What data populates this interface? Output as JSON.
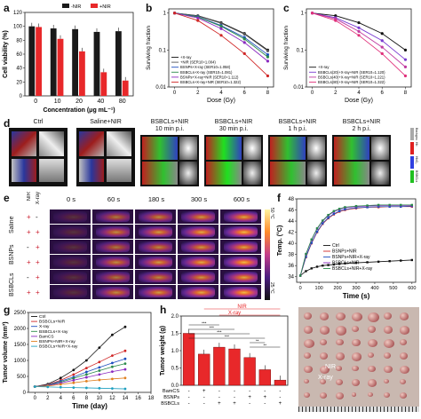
{
  "panel_labels": {
    "a": "a",
    "b": "b",
    "c": "c",
    "d": "d",
    "e": "e",
    "f": "f",
    "g": "g",
    "h": "h",
    "i": "i"
  },
  "colors": {
    "nir": "#e8282a",
    "no_nir": "#1a1a1a",
    "accent": "#cc2233"
  },
  "panel_a": {
    "legend": [
      "-NIR",
      "+NIR"
    ],
    "ylabel": "Cell viability (%)",
    "xlabel": "Concentration (μg mL⁻¹)",
    "categories": [
      "0",
      "10",
      "20",
      "40",
      "80"
    ],
    "yticks": [
      "0",
      "20",
      "40",
      "60",
      "80",
      "100",
      "120"
    ]
  },
  "panel_b": {
    "ylabel": "Surviving fraction",
    "xlabel": "Dose (Gy)",
    "xticks": [
      "0",
      "2",
      "4",
      "6",
      "8"
    ],
    "yticks": [
      "1",
      "0.1",
      "0.01"
    ],
    "legend": [
      "+X-ray",
      "+NIR (SER10=1.004)",
      "BSNPs+X-ray (SER10=1.058)",
      "BSBCLs+X-ray (SER10=1.081)",
      "BSNPs+X-ray+NIR (SER10=1.112)",
      "BSBCLs+X-ray+NIR (SER10=1.322)"
    ]
  },
  "panel_c": {
    "ylabel": "Surviving fraction",
    "xlabel": "Dose (Gy)",
    "xticks": [
      "0",
      "2",
      "4",
      "6",
      "8"
    ],
    "yticks": [
      "1",
      "0.1",
      "0.01"
    ],
    "legend": [
      "+X-ray",
      "BSBCLs(20)+X-ray+NIR (SER10=1.120)",
      "BSBCLs(40)+X-ray+NIR (SER10=1.221)",
      "BSBCLs(80)+X-ray+NIR (SER10=1.322)"
    ]
  },
  "panel_d": {
    "titles": [
      "Ctrl",
      "Saline+NIR",
      "BSBCLs+NIR\n10 min p.i.",
      "BSBCLs+NIR\n30 min p.i.",
      "BSBCLs+NIR\n1 h p.i.",
      "BSBCLs+NIR\n2 h p.i."
    ],
    "side": [
      "Background",
      "Hb",
      "HbO₂",
      "BSBCLs"
    ]
  },
  "panel_e": {
    "times": [
      "0 s",
      "60 s",
      "180 s",
      "300 s",
      "600 s"
    ],
    "rows": [
      "Saline",
      "BSNPs",
      "BSBCLs"
    ],
    "nir_col": "NIR",
    "xray_col": "X-ray",
    "signs": [
      [
        "+",
        "-"
      ],
      [
        "+",
        "+"
      ],
      [
        "-",
        "+"
      ],
      [
        "+",
        "+"
      ],
      [
        "-",
        "+"
      ],
      [
        "+",
        "+"
      ]
    ],
    "scale_top": "50 °C",
    "scale_bottom": "25 °C"
  },
  "panel_f": {
    "ylabel": "Temp. (°C)",
    "xlabel": "Time (s)",
    "xticks": [
      "0",
      "100",
      "200",
      "300",
      "400",
      "500",
      "600"
    ],
    "yticks": [
      "34",
      "36",
      "38",
      "40",
      "42",
      "44",
      "46",
      "48"
    ],
    "legend": [
      "Ctrl",
      "BSNPs+NIR",
      "BSNPs+NIR+X-ray",
      "BSBCLs+NIR",
      "BSBCLs+NIR+X-ray"
    ]
  },
  "panel_g": {
    "ylabel": "Tumor volume (mm³)",
    "xlabel": "Time (day)",
    "xticks": [
      "0",
      "2",
      "4",
      "6",
      "8",
      "10",
      "12",
      "14",
      "16",
      "18"
    ],
    "yticks": [
      "0",
      "500",
      "1000",
      "1500",
      "2000",
      "2500"
    ],
    "legend": [
      "Ctrl",
      "BSBCLs+NIR",
      "X-ray",
      "BSBCLs+X-ray",
      "BamCS",
      "BSNPs+NIR+X-ray",
      "BSBCLs+NIR+X-ray"
    ]
  },
  "panel_h": {
    "ylabel": "Tumor weight (g)",
    "yticks": [
      "0.0",
      "0.5",
      "1.0",
      "1.5",
      "2.0"
    ],
    "nir_label": "NIR",
    "xray_label": "X-ray",
    "row_labels": [
      "BamCS",
      "BSNPs",
      "BSBCLs"
    ],
    "signs": [
      [
        "-",
        "+",
        "-",
        "-",
        "-",
        "-",
        "-"
      ],
      [
        "-",
        "-",
        "-",
        "-",
        "+",
        "+",
        "-"
      ],
      [
        "-",
        "-",
        "+",
        "+",
        "-",
        "-",
        "+"
      ]
    ],
    "values": [
      1.5,
      0.9,
      1.1,
      1.05,
      0.8,
      0.45,
      0.15
    ],
    "sig": [
      "***",
      "***",
      "***",
      "***",
      "**",
      "**"
    ]
  },
  "panel_i": {
    "nir_label": "NIR",
    "xray_label": "X-ray"
  },
  "chart_data": [
    {
      "type": "bar",
      "panel": "a",
      "categories": [
        "0",
        "10",
        "20",
        "40",
        "80"
      ],
      "series": [
        {
          "name": "-NIR",
          "values": [
            100,
            97,
            96,
            92,
            93
          ]
        },
        {
          "name": "+NIR",
          "values": [
            99,
            82,
            64,
            34,
            22
          ]
        }
      ],
      "xlabel": "Concentration (μg mL⁻¹)",
      "ylabel": "Cell viability (%)",
      "ylim": [
        0,
        120
      ]
    },
    {
      "type": "line",
      "panel": "b",
      "x": [
        0,
        2,
        4,
        6,
        8
      ],
      "series": [
        {
          "name": "+X-ray",
          "values": [
            1,
            0.85,
            0.55,
            0.28,
            0.1
          ]
        },
        {
          "name": "+NIR (SER10=1.004)",
          "values": [
            1,
            0.84,
            0.53,
            0.27,
            0.095
          ]
        },
        {
          "name": "BSNPs+X-ray (SER10=1.058)",
          "values": [
            1,
            0.8,
            0.46,
            0.22,
            0.075
          ]
        },
        {
          "name": "BSBCLs+X-ray (SER10=1.081)",
          "values": [
            1,
            0.78,
            0.44,
            0.2,
            0.065
          ]
        },
        {
          "name": "BSNPs+X-ray+NIR (SER10=1.112)",
          "values": [
            1,
            0.74,
            0.38,
            0.16,
            0.05
          ]
        },
        {
          "name": "BSBCLs+X-ray+NIR (SER10=1.322)",
          "values": [
            1,
            0.63,
            0.25,
            0.08,
            0.02
          ]
        }
      ],
      "xlabel": "Dose (Gy)",
      "ylabel": "Surviving fraction"
    },
    {
      "type": "line",
      "panel": "c",
      "x": [
        0,
        2,
        4,
        6,
        8
      ],
      "series": [
        {
          "name": "+X-ray",
          "values": [
            1,
            0.85,
            0.55,
            0.28,
            0.1
          ]
        },
        {
          "name": "BSBCLs(20)+X-ray+NIR (SER10=1.120)",
          "values": [
            1,
            0.75,
            0.4,
            0.18,
            0.055
          ]
        },
        {
          "name": "BSBCLs(40)+X-ray+NIR (SER10=1.221)",
          "values": [
            1,
            0.7,
            0.32,
            0.12,
            0.035
          ]
        },
        {
          "name": "BSBCLs(80)+X-ray+NIR (SER10=1.322)",
          "values": [
            1,
            0.63,
            0.25,
            0.08,
            0.02
          ]
        }
      ],
      "xlabel": "Dose (Gy)",
      "ylabel": "Surviving fraction"
    },
    {
      "type": "line",
      "panel": "f",
      "x": [
        0,
        30,
        60,
        90,
        120,
        150,
        180,
        210,
        240,
        300,
        360,
        420,
        480,
        540,
        600
      ],
      "series": [
        {
          "name": "Ctrl",
          "values": [
            34.2,
            35,
            35.5,
            35.8,
            36,
            36.1,
            36.2,
            36.3,
            36.4,
            36.5,
            36.6,
            36.7,
            36.8,
            36.9,
            37
          ]
        },
        {
          "name": "BSNPs+NIR",
          "values": [
            34.2,
            37.5,
            40,
            42,
            43.5,
            44.5,
            45.2,
            45.7,
            46,
            46.3,
            46.5,
            46.5,
            46.6,
            46.6,
            46.6
          ]
        },
        {
          "name": "BSNPs+NIR+X-ray",
          "values": [
            34.2,
            37.6,
            40.1,
            42.1,
            43.6,
            44.6,
            45.3,
            45.8,
            46.1,
            46.4,
            46.5,
            46.6,
            46.6,
            46.6,
            46.7
          ]
        },
        {
          "name": "BSBCLs+NIR",
          "values": [
            34.2,
            38,
            40.6,
            42.6,
            44,
            45,
            45.7,
            46.1,
            46.4,
            46.6,
            46.7,
            46.8,
            46.8,
            46.8,
            46.8
          ]
        },
        {
          "name": "BSBCLs+NIR+X-ray",
          "values": [
            34.2,
            38.1,
            40.7,
            42.7,
            44.1,
            45.1,
            45.8,
            46.2,
            46.5,
            46.7,
            46.8,
            46.9,
            46.9,
            46.9,
            46.9
          ]
        }
      ],
      "xlabel": "Time (s)",
      "ylabel": "Temp. (°C)",
      "ylim": [
        33,
        48
      ]
    },
    {
      "type": "line",
      "panel": "g",
      "x": [
        0,
        2,
        4,
        6,
        8,
        10,
        12,
        14
      ],
      "series": [
        {
          "name": "Ctrl",
          "values": [
            180,
            260,
            450,
            700,
            1000,
            1400,
            1800,
            2050
          ]
        },
        {
          "name": "BSBCLs+NIR",
          "values": [
            180,
            240,
            380,
            560,
            760,
            950,
            1150,
            1300
          ]
        },
        {
          "name": "X-ray",
          "values": [
            180,
            230,
            350,
            480,
            640,
            780,
            920,
            1050
          ]
        },
        {
          "name": "BSBCLs+X-ray",
          "values": [
            180,
            220,
            320,
            440,
            560,
            680,
            800,
            900
          ]
        },
        {
          "name": "BamCS",
          "values": [
            180,
            210,
            290,
            380,
            470,
            560,
            650,
            720
          ]
        },
        {
          "name": "BSNPs+NIR+X-ray",
          "values": [
            180,
            200,
            250,
            300,
            350,
            390,
            420,
            450
          ]
        },
        {
          "name": "BSBCLs+NIR+X-ray",
          "values": [
            180,
            170,
            160,
            150,
            140,
            130,
            120,
            110
          ]
        }
      ],
      "xlabel": "Time (day)",
      "ylabel": "Tumor volume (mm³)",
      "ylim": [
        0,
        2500
      ]
    },
    {
      "type": "bar",
      "panel": "h",
      "categories": [
        "1",
        "2",
        "3",
        "4",
        "5",
        "6",
        "7"
      ],
      "values": [
        1.5,
        0.9,
        1.1,
        1.05,
        0.8,
        0.45,
        0.15
      ],
      "ylabel": "Tumor weight (g)",
      "ylim": [
        0,
        2.0
      ]
    }
  ]
}
